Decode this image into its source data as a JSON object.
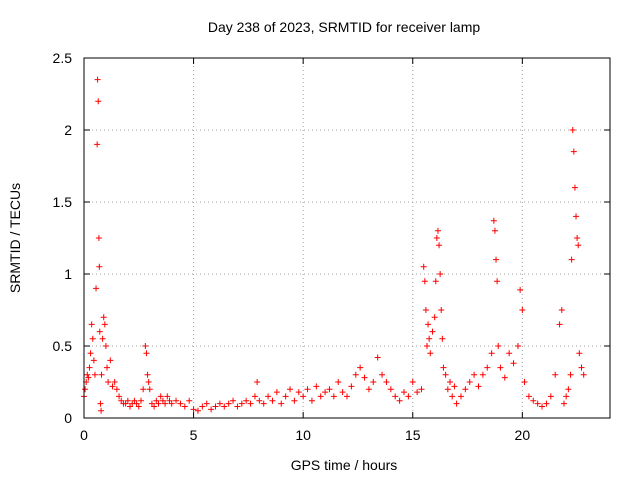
{
  "chart_data": {
    "type": "scatter",
    "title": "Day 238 of 2023, SRMTID for receiver lamp",
    "xlabel": "GPS time / hours",
    "ylabel": "SRMTID / TECUs",
    "xlim": [
      0,
      24
    ],
    "ylim": [
      0,
      2.5
    ],
    "xticks": [
      0,
      5,
      10,
      15,
      20
    ],
    "yticks": [
      0,
      0.5,
      1,
      1.5,
      2,
      2.5
    ],
    "xtick_labels": [
      "0",
      "5",
      "10",
      "15",
      "20"
    ],
    "ytick_labels": [
      "0",
      "0.5",
      "1",
      "1.5",
      "2",
      "2.5"
    ],
    "grid": true,
    "marker": "+",
    "series": [
      {
        "name": "SRMTID",
        "color": "#ff0000",
        "x": [
          0.0,
          0.05,
          0.1,
          0.15,
          0.2,
          0.25,
          0.3,
          0.35,
          0.4,
          0.45,
          0.5,
          0.55,
          0.6,
          0.62,
          0.65,
          0.68,
          0.7,
          0.72,
          0.75,
          0.78,
          0.8,
          0.85,
          0.9,
          0.95,
          1.0,
          1.05,
          1.1,
          1.2,
          1.3,
          1.4,
          1.5,
          1.6,
          1.7,
          1.8,
          1.9,
          2.0,
          2.1,
          2.2,
          2.3,
          2.4,
          2.5,
          2.6,
          2.7,
          2.8,
          2.85,
          2.9,
          2.95,
          3.0,
          3.1,
          3.2,
          3.3,
          3.4,
          3.5,
          3.6,
          3.7,
          3.8,
          3.9,
          4.0,
          4.2,
          4.4,
          4.6,
          4.8,
          5.0,
          5.2,
          5.4,
          5.6,
          5.8,
          6.0,
          6.2,
          6.4,
          6.6,
          6.8,
          7.0,
          7.2,
          7.4,
          7.6,
          7.8,
          7.9,
          8.0,
          8.2,
          8.4,
          8.6,
          8.8,
          9.0,
          9.2,
          9.4,
          9.6,
          9.8,
          10.0,
          10.2,
          10.4,
          10.6,
          10.8,
          11.0,
          11.2,
          11.4,
          11.6,
          11.8,
          12.0,
          12.2,
          12.4,
          12.6,
          12.8,
          13.0,
          13.2,
          13.4,
          13.6,
          13.8,
          14.0,
          14.2,
          14.4,
          14.6,
          14.8,
          15.0,
          15.2,
          15.4,
          15.5,
          15.55,
          15.6,
          15.65,
          15.7,
          15.75,
          15.8,
          15.9,
          16.0,
          16.05,
          16.1,
          16.15,
          16.2,
          16.25,
          16.3,
          16.35,
          16.4,
          16.5,
          16.6,
          16.7,
          16.8,
          16.9,
          17.0,
          17.2,
          17.4,
          17.6,
          17.8,
          18.0,
          18.2,
          18.4,
          18.6,
          18.7,
          18.75,
          18.8,
          18.85,
          18.9,
          19.0,
          19.2,
          19.4,
          19.6,
          19.8,
          19.9,
          20.0,
          20.1,
          20.3,
          20.5,
          20.7,
          20.9,
          21.1,
          21.3,
          21.5,
          21.7,
          21.8,
          21.9,
          22.0,
          22.1,
          22.2,
          22.25,
          22.3,
          22.35,
          22.4,
          22.45,
          22.5,
          22.55,
          22.6,
          22.7,
          22.8
        ],
        "y": [
          0.15,
          0.2,
          0.25,
          0.3,
          0.28,
          0.35,
          0.45,
          0.65,
          0.55,
          0.4,
          0.3,
          0.9,
          1.9,
          2.35,
          2.2,
          1.25,
          1.05,
          0.6,
          0.1,
          0.05,
          0.3,
          0.55,
          0.7,
          0.65,
          0.5,
          0.35,
          0.25,
          0.4,
          0.22,
          0.25,
          0.2,
          0.15,
          0.12,
          0.1,
          0.1,
          0.12,
          0.08,
          0.1,
          0.12,
          0.1,
          0.08,
          0.12,
          0.2,
          0.5,
          0.45,
          0.3,
          0.25,
          0.2,
          0.1,
          0.08,
          0.12,
          0.1,
          0.15,
          0.12,
          0.1,
          0.15,
          0.12,
          0.1,
          0.12,
          0.1,
          0.08,
          0.12,
          0.06,
          0.05,
          0.08,
          0.1,
          0.06,
          0.08,
          0.1,
          0.08,
          0.1,
          0.12,
          0.08,
          0.1,
          0.12,
          0.1,
          0.15,
          0.25,
          0.12,
          0.1,
          0.15,
          0.12,
          0.18,
          0.1,
          0.15,
          0.2,
          0.12,
          0.18,
          0.15,
          0.2,
          0.12,
          0.22,
          0.15,
          0.18,
          0.2,
          0.15,
          0.25,
          0.18,
          0.15,
          0.22,
          0.3,
          0.35,
          0.28,
          0.2,
          0.25,
          0.42,
          0.3,
          0.25,
          0.2,
          0.15,
          0.12,
          0.18,
          0.15,
          0.25,
          0.18,
          0.2,
          1.05,
          0.95,
          0.75,
          0.5,
          0.65,
          0.55,
          0.45,
          0.6,
          0.7,
          0.95,
          1.25,
          1.3,
          1.2,
          1.0,
          0.75,
          0.55,
          0.35,
          0.3,
          0.2,
          0.25,
          0.15,
          0.22,
          0.1,
          0.15,
          0.2,
          0.25,
          0.3,
          0.22,
          0.3,
          0.35,
          0.45,
          1.37,
          1.3,
          1.1,
          0.95,
          0.5,
          0.35,
          0.28,
          0.45,
          0.38,
          0.5,
          0.89,
          0.75,
          0.25,
          0.15,
          0.12,
          0.1,
          0.08,
          0.1,
          0.15,
          0.3,
          0.65,
          0.75,
          0.1,
          0.15,
          0.2,
          0.3,
          1.1,
          2.0,
          1.85,
          1.6,
          1.4,
          1.25,
          1.2,
          0.45,
          0.35,
          0.3
        ]
      }
    ]
  }
}
